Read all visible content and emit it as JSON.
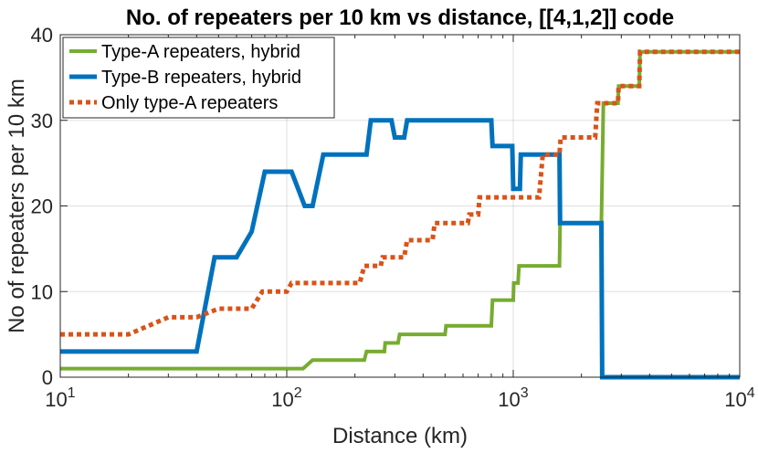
{
  "chart_data": {
    "type": "line",
    "title": "No. of repeaters per 10 km vs distance, [[4,1,2]] code",
    "xlabel": "Distance (km)",
    "ylabel": "No of repeaters per 10 km",
    "xscale": "log",
    "xlim": [
      10,
      10000
    ],
    "ylim": [
      0,
      40
    ],
    "grid": true,
    "legend_position": "top-left",
    "x_ticks": [
      {
        "value": 10,
        "base": "10",
        "exp": "1"
      },
      {
        "value": 100,
        "base": "10",
        "exp": "2"
      },
      {
        "value": 1000,
        "base": "10",
        "exp": "3"
      },
      {
        "value": 10000,
        "base": "10",
        "exp": "4"
      }
    ],
    "y_ticks": [
      {
        "value": 0,
        "label": "0"
      },
      {
        "value": 10,
        "label": "10"
      },
      {
        "value": 20,
        "label": "20"
      },
      {
        "value": 30,
        "label": "30"
      },
      {
        "value": 40,
        "label": "40"
      }
    ],
    "series": [
      {
        "name": "Type-A repeaters, hybrid",
        "color": "#77AC30",
        "style": "solid",
        "width": 4,
        "points": [
          [
            10,
            1
          ],
          [
            118,
            1
          ],
          [
            130,
            2
          ],
          [
            220,
            2
          ],
          [
            225,
            3
          ],
          [
            270,
            3
          ],
          [
            272,
            4
          ],
          [
            310,
            4
          ],
          [
            315,
            5
          ],
          [
            500,
            5
          ],
          [
            505,
            6
          ],
          [
            800,
            6
          ],
          [
            810,
            9
          ],
          [
            1000,
            9
          ],
          [
            1005,
            11
          ],
          [
            1050,
            11
          ],
          [
            1060,
            13
          ],
          [
            1600,
            13
          ],
          [
            1610,
            18
          ],
          [
            2450,
            18
          ],
          [
            2500,
            32
          ],
          [
            2900,
            32
          ],
          [
            2920,
            34
          ],
          [
            3600,
            34
          ],
          [
            3630,
            38
          ],
          [
            10000,
            38
          ]
        ]
      },
      {
        "name": "Type-B repeaters, hybrid",
        "color": "#0072BD",
        "style": "solid",
        "width": 5,
        "points": [
          [
            10,
            3
          ],
          [
            40,
            3
          ],
          [
            48,
            14
          ],
          [
            60,
            14
          ],
          [
            70,
            17
          ],
          [
            80,
            24
          ],
          [
            105,
            24
          ],
          [
            120,
            20
          ],
          [
            130,
            20
          ],
          [
            145,
            26
          ],
          [
            225,
            26
          ],
          [
            235,
            30
          ],
          [
            290,
            30
          ],
          [
            300,
            28
          ],
          [
            330,
            28
          ],
          [
            340,
            30
          ],
          [
            800,
            30
          ],
          [
            810,
            27
          ],
          [
            990,
            27
          ],
          [
            1000,
            22
          ],
          [
            1070,
            22
          ],
          [
            1080,
            26
          ],
          [
            1600,
            26
          ],
          [
            1610,
            18
          ],
          [
            2450,
            18
          ],
          [
            2470,
            0
          ],
          [
            10000,
            0
          ]
        ]
      },
      {
        "name": "Only type-A repeaters",
        "color": "#D95319",
        "style": "dotted",
        "width": 5,
        "points": [
          [
            10,
            5
          ],
          [
            20,
            5
          ],
          [
            30,
            7
          ],
          [
            40,
            7
          ],
          [
            50,
            8
          ],
          [
            70,
            8
          ],
          [
            78,
            10
          ],
          [
            100,
            10
          ],
          [
            105,
            11
          ],
          [
            210,
            11
          ],
          [
            220,
            13
          ],
          [
            260,
            13
          ],
          [
            265,
            14
          ],
          [
            330,
            14
          ],
          [
            340,
            16
          ],
          [
            440,
            16
          ],
          [
            450,
            18
          ],
          [
            630,
            18
          ],
          [
            640,
            19
          ],
          [
            700,
            19
          ],
          [
            710,
            21
          ],
          [
            1300,
            21
          ],
          [
            1350,
            26
          ],
          [
            1600,
            26
          ],
          [
            1620,
            28
          ],
          [
            2300,
            28
          ],
          [
            2350,
            32
          ],
          [
            2900,
            32
          ],
          [
            2920,
            34
          ],
          [
            3600,
            34
          ],
          [
            3630,
            38
          ],
          [
            10000,
            38
          ]
        ]
      }
    ]
  }
}
